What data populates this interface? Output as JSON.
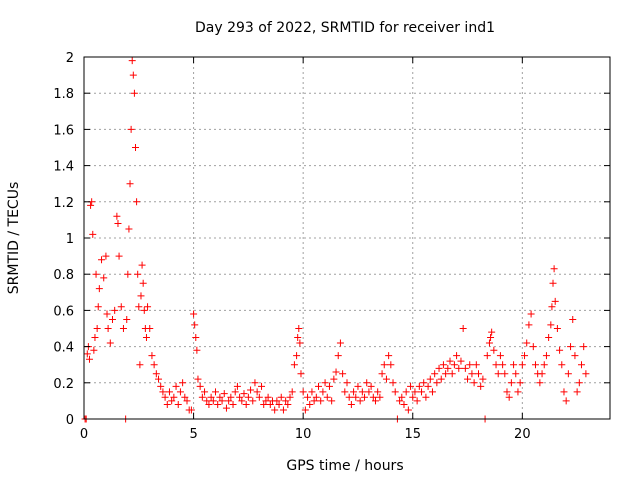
{
  "chart_data": {
    "type": "scatter",
    "title": "Day 293 of 2022, SRMTID for receiver ind1",
    "xlabel": "GPS time / hours",
    "ylabel": "SRMTID / TECUs",
    "xlim": [
      0,
      24
    ],
    "ylim": [
      0,
      2
    ],
    "grid": true,
    "marker": "+",
    "series_color": "#ff0000",
    "x_ticks": [
      0,
      5,
      10,
      15,
      20
    ],
    "x_tick_labels": [
      "0",
      "5",
      "10",
      "15",
      "20"
    ],
    "y_ticks": [
      0,
      0.2,
      0.4,
      0.6,
      0.8,
      1,
      1.2,
      1.4,
      1.6,
      1.8,
      2
    ],
    "y_tick_labels": [
      "0",
      "0.2",
      "0.4",
      "0.6",
      "0.8",
      "1",
      "1.2",
      "1.4",
      "1.6",
      "1.8",
      "2"
    ],
    "series": [
      {
        "name": "ind1",
        "points": [
          [
            0.05,
            0.0
          ],
          [
            0.1,
            0.0
          ],
          [
            0.15,
            0.36
          ],
          [
            0.2,
            0.4
          ],
          [
            0.25,
            0.33
          ],
          [
            0.3,
            1.18
          ],
          [
            0.35,
            1.2
          ],
          [
            0.4,
            1.02
          ],
          [
            0.45,
            0.38
          ],
          [
            0.5,
            0.45
          ],
          [
            0.55,
            0.8
          ],
          [
            0.6,
            0.5
          ],
          [
            0.65,
            0.62
          ],
          [
            0.7,
            0.72
          ],
          [
            0.8,
            0.88
          ],
          [
            0.9,
            0.78
          ],
          [
            1.0,
            0.9
          ],
          [
            1.05,
            0.58
          ],
          [
            1.1,
            0.5
          ],
          [
            1.2,
            0.42
          ],
          [
            1.3,
            0.55
          ],
          [
            1.4,
            0.6
          ],
          [
            1.5,
            1.12
          ],
          [
            1.55,
            1.08
          ],
          [
            1.6,
            0.9
          ],
          [
            1.7,
            0.62
          ],
          [
            1.8,
            0.5
          ],
          [
            1.9,
            0.0
          ],
          [
            1.95,
            0.55
          ],
          [
            2.0,
            0.8
          ],
          [
            2.05,
            1.05
          ],
          [
            2.1,
            1.3
          ],
          [
            2.15,
            1.6
          ],
          [
            2.2,
            1.98
          ],
          [
            2.25,
            1.9
          ],
          [
            2.3,
            1.8
          ],
          [
            2.35,
            1.5
          ],
          [
            2.4,
            1.2
          ],
          [
            2.45,
            0.8
          ],
          [
            2.5,
            0.62
          ],
          [
            2.55,
            0.3
          ],
          [
            2.6,
            0.68
          ],
          [
            2.65,
            0.85
          ],
          [
            2.7,
            0.75
          ],
          [
            2.75,
            0.6
          ],
          [
            2.8,
            0.5
          ],
          [
            2.85,
            0.45
          ],
          [
            2.9,
            0.62
          ],
          [
            3.0,
            0.5
          ],
          [
            3.1,
            0.35
          ],
          [
            3.2,
            0.3
          ],
          [
            3.3,
            0.25
          ],
          [
            3.4,
            0.22
          ],
          [
            3.5,
            0.18
          ],
          [
            3.6,
            0.15
          ],
          [
            3.7,
            0.12
          ],
          [
            3.8,
            0.08
          ],
          [
            3.9,
            0.15
          ],
          [
            4.0,
            0.1
          ],
          [
            4.1,
            0.12
          ],
          [
            4.2,
            0.18
          ],
          [
            4.3,
            0.08
          ],
          [
            4.4,
            0.15
          ],
          [
            4.5,
            0.2
          ],
          [
            4.6,
            0.12
          ],
          [
            4.7,
            0.1
          ],
          [
            4.8,
            0.05
          ],
          [
            4.9,
            0.05
          ],
          [
            5.0,
            0.58
          ],
          [
            5.05,
            0.52
          ],
          [
            5.1,
            0.45
          ],
          [
            5.15,
            0.38
          ],
          [
            5.2,
            0.22
          ],
          [
            5.3,
            0.18
          ],
          [
            5.4,
            0.12
          ],
          [
            5.5,
            0.15
          ],
          [
            5.6,
            0.1
          ],
          [
            5.7,
            0.08
          ],
          [
            5.8,
            0.12
          ],
          [
            5.9,
            0.1
          ],
          [
            6.0,
            0.15
          ],
          [
            6.1,
            0.08
          ],
          [
            6.2,
            0.12
          ],
          [
            6.3,
            0.1
          ],
          [
            6.4,
            0.14
          ],
          [
            6.5,
            0.06
          ],
          [
            6.6,
            0.1
          ],
          [
            6.7,
            0.12
          ],
          [
            6.8,
            0.08
          ],
          [
            6.9,
            0.15
          ],
          [
            7.0,
            0.18
          ],
          [
            7.1,
            0.12
          ],
          [
            7.2,
            0.1
          ],
          [
            7.3,
            0.14
          ],
          [
            7.4,
            0.08
          ],
          [
            7.5,
            0.12
          ],
          [
            7.6,
            0.16
          ],
          [
            7.7,
            0.1
          ],
          [
            7.8,
            0.2
          ],
          [
            7.9,
            0.15
          ],
          [
            8.0,
            0.12
          ],
          [
            8.1,
            0.18
          ],
          [
            8.2,
            0.08
          ],
          [
            8.3,
            0.1
          ],
          [
            8.4,
            0.12
          ],
          [
            8.5,
            0.08
          ],
          [
            8.6,
            0.1
          ],
          [
            8.7,
            0.05
          ],
          [
            8.8,
            0.1
          ],
          [
            8.9,
            0.08
          ],
          [
            9.0,
            0.12
          ],
          [
            9.1,
            0.05
          ],
          [
            9.2,
            0.1
          ],
          [
            9.3,
            0.08
          ],
          [
            9.4,
            0.12
          ],
          [
            9.5,
            0.15
          ],
          [
            9.6,
            0.3
          ],
          [
            9.7,
            0.35
          ],
          [
            9.75,
            0.45
          ],
          [
            9.8,
            0.5
          ],
          [
            9.85,
            0.42
          ],
          [
            9.9,
            0.25
          ],
          [
            10.0,
            0.15
          ],
          [
            10.1,
            0.05
          ],
          [
            10.2,
            0.12
          ],
          [
            10.3,
            0.08
          ],
          [
            10.4,
            0.15
          ],
          [
            10.5,
            0.1
          ],
          [
            10.6,
            0.12
          ],
          [
            10.7,
            0.18
          ],
          [
            10.8,
            0.1
          ],
          [
            10.9,
            0.15
          ],
          [
            11.0,
            0.2
          ],
          [
            11.1,
            0.12
          ],
          [
            11.2,
            0.18
          ],
          [
            11.3,
            0.1
          ],
          [
            11.4,
            0.22
          ],
          [
            11.5,
            0.26
          ],
          [
            11.6,
            0.35
          ],
          [
            11.7,
            0.42
          ],
          [
            11.8,
            0.25
          ],
          [
            11.9,
            0.15
          ],
          [
            12.0,
            0.2
          ],
          [
            12.1,
            0.12
          ],
          [
            12.2,
            0.08
          ],
          [
            12.3,
            0.15
          ],
          [
            12.4,
            0.12
          ],
          [
            12.5,
            0.18
          ],
          [
            12.6,
            0.1
          ],
          [
            12.7,
            0.15
          ],
          [
            12.8,
            0.12
          ],
          [
            12.9,
            0.2
          ],
          [
            13.0,
            0.15
          ],
          [
            13.1,
            0.18
          ],
          [
            13.2,
            0.12
          ],
          [
            13.3,
            0.1
          ],
          [
            13.4,
            0.15
          ],
          [
            13.5,
            0.12
          ],
          [
            13.6,
            0.25
          ],
          [
            13.7,
            0.3
          ],
          [
            13.8,
            0.22
          ],
          [
            13.9,
            0.35
          ],
          [
            14.0,
            0.3
          ],
          [
            14.1,
            0.2
          ],
          [
            14.2,
            0.15
          ],
          [
            14.3,
            0.0
          ],
          [
            14.4,
            0.1
          ],
          [
            14.5,
            0.12
          ],
          [
            14.6,
            0.08
          ],
          [
            14.7,
            0.15
          ],
          [
            14.8,
            0.05
          ],
          [
            14.9,
            0.18
          ],
          [
            15.0,
            0.12
          ],
          [
            15.1,
            0.15
          ],
          [
            15.2,
            0.1
          ],
          [
            15.3,
            0.18
          ],
          [
            15.4,
            0.15
          ],
          [
            15.5,
            0.2
          ],
          [
            15.6,
            0.12
          ],
          [
            15.7,
            0.18
          ],
          [
            15.8,
            0.22
          ],
          [
            15.9,
            0.15
          ],
          [
            16.0,
            0.25
          ],
          [
            16.1,
            0.2
          ],
          [
            16.2,
            0.28
          ],
          [
            16.3,
            0.22
          ],
          [
            16.4,
            0.3
          ],
          [
            16.5,
            0.25
          ],
          [
            16.6,
            0.28
          ],
          [
            16.7,
            0.32
          ],
          [
            16.8,
            0.25
          ],
          [
            16.9,
            0.3
          ],
          [
            17.0,
            0.35
          ],
          [
            17.1,
            0.28
          ],
          [
            17.2,
            0.32
          ],
          [
            17.3,
            0.5
          ],
          [
            17.4,
            0.28
          ],
          [
            17.5,
            0.22
          ],
          [
            17.6,
            0.3
          ],
          [
            17.7,
            0.25
          ],
          [
            17.8,
            0.2
          ],
          [
            17.9,
            0.3
          ],
          [
            18.0,
            0.25
          ],
          [
            18.1,
            0.18
          ],
          [
            18.2,
            0.22
          ],
          [
            18.3,
            0.0
          ],
          [
            18.4,
            0.35
          ],
          [
            18.5,
            0.42
          ],
          [
            18.55,
            0.45
          ],
          [
            18.6,
            0.48
          ],
          [
            18.7,
            0.38
          ],
          [
            18.8,
            0.3
          ],
          [
            18.9,
            0.25
          ],
          [
            19.0,
            0.35
          ],
          [
            19.1,
            0.3
          ],
          [
            19.2,
            0.25
          ],
          [
            19.3,
            0.15
          ],
          [
            19.4,
            0.12
          ],
          [
            19.5,
            0.2
          ],
          [
            19.6,
            0.3
          ],
          [
            19.7,
            0.25
          ],
          [
            19.8,
            0.15
          ],
          [
            19.9,
            0.2
          ],
          [
            20.0,
            0.3
          ],
          [
            20.1,
            0.35
          ],
          [
            20.2,
            0.42
          ],
          [
            20.3,
            0.52
          ],
          [
            20.4,
            0.58
          ],
          [
            20.5,
            0.4
          ],
          [
            20.6,
            0.3
          ],
          [
            20.7,
            0.25
          ],
          [
            20.8,
            0.2
          ],
          [
            20.9,
            0.25
          ],
          [
            21.0,
            0.3
          ],
          [
            21.1,
            0.35
          ],
          [
            21.2,
            0.45
          ],
          [
            21.3,
            0.52
          ],
          [
            21.35,
            0.62
          ],
          [
            21.4,
            0.75
          ],
          [
            21.45,
            0.83
          ],
          [
            21.5,
            0.65
          ],
          [
            21.6,
            0.5
          ],
          [
            21.7,
            0.38
          ],
          [
            21.8,
            0.3
          ],
          [
            21.9,
            0.15
          ],
          [
            22.0,
            0.1
          ],
          [
            22.1,
            0.25
          ],
          [
            22.2,
            0.4
          ],
          [
            22.3,
            0.55
          ],
          [
            22.4,
            0.35
          ],
          [
            22.5,
            0.15
          ],
          [
            22.6,
            0.2
          ],
          [
            22.7,
            0.3
          ],
          [
            22.8,
            0.4
          ],
          [
            22.9,
            0.25
          ]
        ]
      }
    ]
  }
}
